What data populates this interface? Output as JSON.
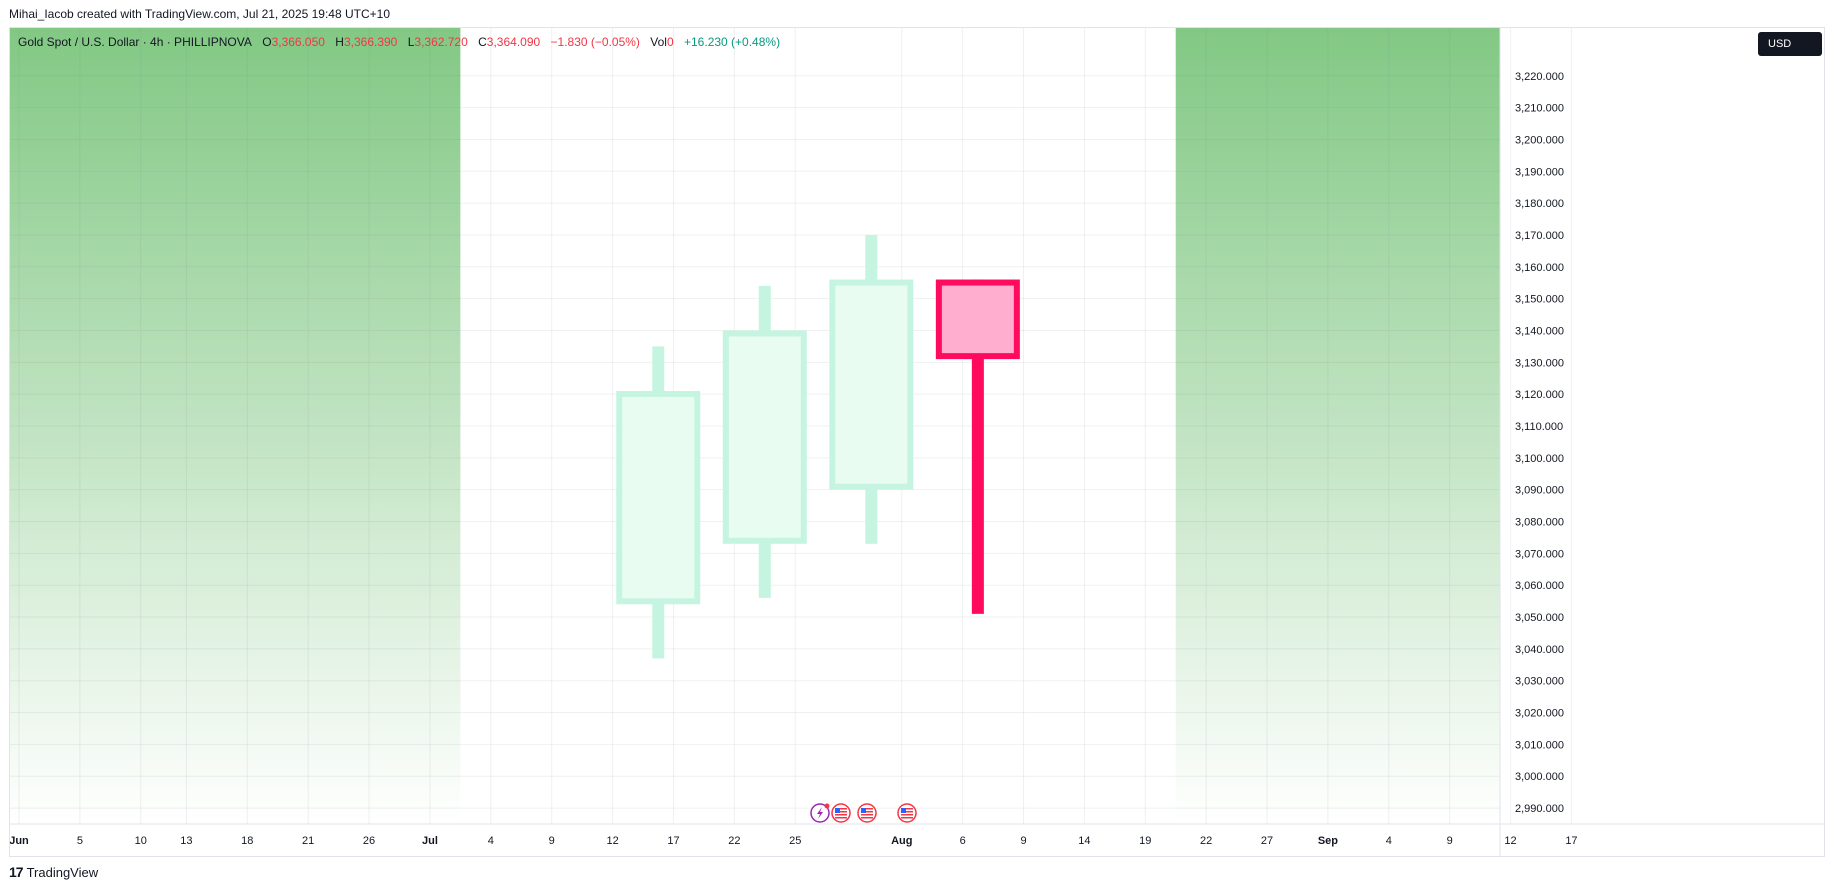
{
  "header": {
    "text": "Mihai_Iacob created with TradingView.com, Jul 21, 2025 19:48 UTC+10"
  },
  "legend": {
    "symbol": "Gold Spot / U.S. Dollar · 4h · PHILLIPNOVA",
    "o_label": "O",
    "o_value": "3,366.050",
    "h_label": "H",
    "h_value": "3,366.390",
    "l_label": "L",
    "l_value": "3,362.720",
    "c_label": "C",
    "c_value": "3,364.090",
    "change": "−1.830 (−0.05%)",
    "vol_label": "Vol",
    "vol_value": "0",
    "indicator_change": "+16.230 (+0.48%)"
  },
  "currency_badge": "USD",
  "footer": {
    "brand": "TradingView",
    "logo_icon": "tradingview-logo-icon"
  },
  "colors": {
    "gradient_top": "#82c884",
    "gradient_bottom": "#ffffff",
    "bull_body": "#e8fcf2",
    "bull_border": "#c5f5e0",
    "bear_body": "#ffaecf",
    "bear_border": "#ff0a5d",
    "red_text": "#f23645",
    "green_text": "#089981"
  },
  "event_markers": [
    {
      "icon": "lightning-icon"
    },
    {
      "icon": "us-flag-icon"
    },
    {
      "icon": "us-flag-icon"
    },
    {
      "icon": "us-flag-icon"
    }
  ],
  "chart_data": {
    "type": "candlestick",
    "y_axis": {
      "ylim": [
        2985,
        3235
      ],
      "tick_values": [
        2990,
        3000,
        3010,
        3020,
        3030,
        3040,
        3050,
        3060,
        3070,
        3080,
        3090,
        3100,
        3110,
        3120,
        3130,
        3140,
        3150,
        3160,
        3170,
        3180,
        3190,
        3200,
        3210,
        3220
      ],
      "tick_labels": [
        "2,990.000",
        "3,000.000",
        "3,010.000",
        "3,020.000",
        "3,030.000",
        "3,040.000",
        "3,050.000",
        "3,060.000",
        "3,070.000",
        "3,080.000",
        "3,090.000",
        "3,100.000",
        "3,110.000",
        "3,120.000",
        "3,130.000",
        "3,140.000",
        "3,150.000",
        "3,160.000",
        "3,170.000",
        "3,180.000",
        "3,190.000",
        "3,200.000",
        "3,210.000",
        "3,220.000"
      ]
    },
    "x_axis": {
      "xlim": [
        "2025-06-01",
        "2025-09-22"
      ],
      "ticks": [
        {
          "date": "2025-06-01",
          "label": "Jun",
          "bold": true
        },
        {
          "date": "2025-06-05",
          "label": "5"
        },
        {
          "date": "2025-06-09",
          "label": "10"
        },
        {
          "date": "2025-06-12",
          "label": "13"
        },
        {
          "date": "2025-06-16",
          "label": "18"
        },
        {
          "date": "2025-06-20",
          "label": "21"
        },
        {
          "date": "2025-06-24",
          "label": "26"
        },
        {
          "date": "2025-06-28",
          "label": "Jul",
          "bold": true
        },
        {
          "date": "2025-07-02",
          "label": "4"
        },
        {
          "date": "2025-07-06",
          "label": "9"
        },
        {
          "date": "2025-07-10",
          "label": "12"
        },
        {
          "date": "2025-07-14",
          "label": "17"
        },
        {
          "date": "2025-07-18",
          "label": "22"
        },
        {
          "date": "2025-07-22",
          "label": "25"
        },
        {
          "date": "2025-07-29",
          "label": "Aug",
          "bold": true
        },
        {
          "date": "2025-08-02",
          "label": "6"
        },
        {
          "date": "2025-08-06",
          "label": "9"
        },
        {
          "date": "2025-08-10",
          "label": "14"
        },
        {
          "date": "2025-08-14",
          "label": "19"
        },
        {
          "date": "2025-08-18",
          "label": "22"
        },
        {
          "date": "2025-08-22",
          "label": "27"
        },
        {
          "date": "2025-08-26",
          "label": "Sep",
          "bold": true
        },
        {
          "date": "2025-08-30",
          "label": "4"
        },
        {
          "date": "2025-09-03",
          "label": "9"
        },
        {
          "date": "2025-09-07",
          "label": "12"
        },
        {
          "date": "2025-09-11",
          "label": "17"
        }
      ]
    },
    "candles": [
      {
        "date": "2025-07-13",
        "open": 3054,
        "high": 3135,
        "low": 3037,
        "close": 3121
      },
      {
        "date": "2025-07-20",
        "open": 3073,
        "high": 3154,
        "low": 3056,
        "close": 3140
      },
      {
        "date": "2025-07-27",
        "open": 3090,
        "high": 3170,
        "low": 3073,
        "close": 3156
      },
      {
        "date": "2025-08-03",
        "open": 3156,
        "high": 3156,
        "low": 3051,
        "close": 3131
      }
    ],
    "highlight_window": [
      "2025-06-30",
      "2025-08-16"
    ],
    "grid": true
  }
}
